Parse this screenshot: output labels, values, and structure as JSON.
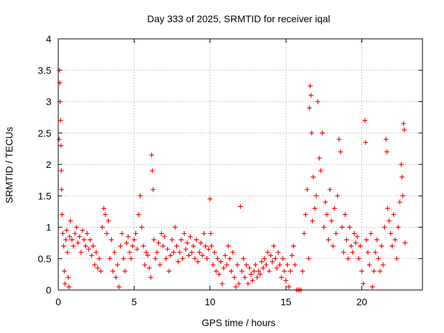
{
  "chart_data": {
    "type": "scatter",
    "title": "Day 333 of 2025, SRMTID for receiver iqal",
    "xlabel": "GPS time / hours",
    "ylabel": "SRMTID / TECUs",
    "xlim": [
      0,
      24
    ],
    "ylim": [
      0,
      4
    ],
    "xticks": [
      0,
      5,
      10,
      15,
      20
    ],
    "xtick_labels": [
      "0",
      "5",
      "10",
      "15",
      "20"
    ],
    "yticks": [
      0,
      0.5,
      1,
      1.5,
      2,
      2.5,
      3,
      3.5,
      4
    ],
    "ytick_labels": [
      "0",
      "0.5",
      "1",
      "1.5",
      "2",
      "2.5",
      "3",
      "3.5",
      "4"
    ],
    "grid": true,
    "marker": "+",
    "series": [
      {
        "name": "SRMTID",
        "color": "#ff0000",
        "points": [
          [
            0.05,
            2.4
          ],
          [
            0.08,
            3.5
          ],
          [
            0.1,
            3.3
          ],
          [
            0.12,
            3.0
          ],
          [
            0.15,
            2.7
          ],
          [
            0.18,
            2.3
          ],
          [
            0.2,
            1.9
          ],
          [
            0.22,
            1.6
          ],
          [
            0.25,
            1.2
          ],
          [
            0.3,
            0.9
          ],
          [
            0.35,
            0.7
          ],
          [
            0.4,
            0.3
          ],
          [
            0.45,
            0.1
          ],
          [
            0.5,
            0.8
          ],
          [
            0.55,
            0.95
          ],
          [
            0.6,
            0.6
          ],
          [
            0.65,
            0.2
          ],
          [
            0.7,
            0.05
          ],
          [
            0.75,
            0.85
          ],
          [
            0.8,
            1.1
          ],
          [
            0.9,
            0.8
          ],
          [
            1.0,
            0.7
          ],
          [
            1.1,
            0.9
          ],
          [
            1.2,
            1.0
          ],
          [
            1.3,
            0.75
          ],
          [
            1.4,
            0.85
          ],
          [
            1.5,
            0.6
          ],
          [
            1.6,
            0.95
          ],
          [
            1.7,
            0.8
          ],
          [
            1.8,
            0.7
          ],
          [
            1.9,
            0.9
          ],
          [
            2.0,
            0.65
          ],
          [
            2.1,
            0.8
          ],
          [
            2.2,
            0.55
          ],
          [
            2.3,
            0.7
          ],
          [
            2.4,
            0.4
          ],
          [
            2.5,
            0.6
          ],
          [
            2.6,
            0.35
          ],
          [
            2.7,
            0.5
          ],
          [
            2.8,
            0.3
          ],
          [
            2.9,
            1.0
          ],
          [
            3.0,
            1.3
          ],
          [
            3.1,
            1.2
          ],
          [
            3.2,
            0.9
          ],
          [
            3.3,
            1.1
          ],
          [
            3.4,
            0.5
          ],
          [
            3.5,
            0.8
          ],
          [
            3.6,
            0.3
          ],
          [
            3.7,
            0.6
          ],
          [
            3.8,
            0.2
          ],
          [
            3.9,
            0.4
          ],
          [
            4.0,
            0.05
          ],
          [
            4.1,
            0.7
          ],
          [
            4.2,
            0.9
          ],
          [
            4.3,
            0.5
          ],
          [
            4.4,
            0.3
          ],
          [
            4.5,
            0.75
          ],
          [
            4.6,
            0.85
          ],
          [
            4.7,
            0.6
          ],
          [
            4.8,
            0.5
          ],
          [
            4.9,
            0.7
          ],
          [
            5.0,
            0.8
          ],
          [
            5.1,
            0.9
          ],
          [
            5.2,
            0.65
          ],
          [
            5.3,
            1.2
          ],
          [
            5.4,
            1.5
          ],
          [
            5.5,
            1.0
          ],
          [
            5.6,
            0.7
          ],
          [
            5.7,
            0.4
          ],
          [
            5.8,
            0.6
          ],
          [
            5.9,
            0.55
          ],
          [
            6.0,
            0.35
          ],
          [
            6.1,
            0.2
          ],
          [
            6.15,
            2.15
          ],
          [
            6.2,
            1.9
          ],
          [
            6.25,
            1.6
          ],
          [
            6.3,
            0.8
          ],
          [
            6.4,
            0.5
          ],
          [
            6.5,
            0.6
          ],
          [
            6.6,
            0.75
          ],
          [
            6.7,
            0.4
          ],
          [
            6.8,
            0.9
          ],
          [
            6.9,
            0.7
          ],
          [
            7.0,
            0.85
          ],
          [
            7.1,
            0.5
          ],
          [
            7.2,
            0.65
          ],
          [
            7.3,
            0.3
          ],
          [
            7.4,
            0.55
          ],
          [
            7.5,
            0.8
          ],
          [
            7.6,
            0.6
          ],
          [
            7.7,
            1.0
          ],
          [
            7.8,
            0.7
          ],
          [
            7.9,
            0.45
          ],
          [
            8.0,
            0.6
          ],
          [
            8.1,
            0.8
          ],
          [
            8.2,
            0.5
          ],
          [
            8.3,
            0.9
          ],
          [
            8.4,
            0.65
          ],
          [
            8.5,
            0.75
          ],
          [
            8.6,
            0.55
          ],
          [
            8.7,
            0.85
          ],
          [
            8.8,
            0.6
          ],
          [
            8.9,
            0.7
          ],
          [
            9.0,
            0.5
          ],
          [
            9.1,
            0.8
          ],
          [
            9.2,
            0.45
          ],
          [
            9.3,
            0.6
          ],
          [
            9.4,
            0.75
          ],
          [
            9.5,
            0.55
          ],
          [
            9.6,
            0.9
          ],
          [
            9.7,
            0.7
          ],
          [
            9.8,
            0.5
          ],
          [
            9.9,
            0.65
          ],
          [
            10.0,
            1.45
          ],
          [
            10.05,
            0.9
          ],
          [
            10.1,
            0.7
          ],
          [
            10.2,
            0.4
          ],
          [
            10.3,
            0.6
          ],
          [
            10.4,
            0.3
          ],
          [
            10.5,
            0.5
          ],
          [
            10.6,
            0.25
          ],
          [
            10.7,
            0.45
          ],
          [
            10.8,
            0.1
          ],
          [
            10.9,
            0.35
          ],
          [
            11.0,
            0.55
          ],
          [
            11.1,
            0.4
          ],
          [
            11.2,
            0.7
          ],
          [
            11.3,
            0.5
          ],
          [
            11.4,
            0.3
          ],
          [
            11.5,
            0.6
          ],
          [
            11.6,
            0.2
          ],
          [
            11.7,
            0.05
          ],
          [
            11.8,
            0.4
          ],
          [
            11.9,
            0.1
          ],
          [
            12.0,
            1.33
          ],
          [
            12.1,
            0.3
          ],
          [
            12.2,
            0.5
          ],
          [
            12.3,
            0.2
          ],
          [
            12.4,
            0.4
          ],
          [
            12.5,
            0.1
          ],
          [
            12.6,
            0.35
          ],
          [
            12.7,
            0.25
          ],
          [
            12.8,
            0.15
          ],
          [
            12.9,
            0.3
          ],
          [
            13.0,
            0.4
          ],
          [
            13.1,
            0.2
          ],
          [
            13.2,
            0.3
          ],
          [
            13.3,
            0.25
          ],
          [
            13.4,
            0.45
          ],
          [
            13.5,
            0.35
          ],
          [
            13.6,
            0.5
          ],
          [
            13.7,
            0.4
          ],
          [
            13.8,
            0.6
          ],
          [
            13.9,
            0.3
          ],
          [
            14.0,
            0.55
          ],
          [
            14.1,
            0.45
          ],
          [
            14.2,
            0.7
          ],
          [
            14.3,
            0.5
          ],
          [
            14.4,
            0.35
          ],
          [
            14.5,
            0.6
          ],
          [
            14.6,
            0.4
          ],
          [
            14.7,
            0.2
          ],
          [
            14.8,
            0.5
          ],
          [
            14.9,
            0.3
          ],
          [
            15.0,
            0.15
          ],
          [
            15.1,
            0.4
          ],
          [
            15.2,
            0.05
          ],
          [
            15.3,
            0.3
          ],
          [
            15.4,
            0.55
          ],
          [
            15.5,
            0.7
          ],
          [
            15.6,
            0.4
          ],
          [
            15.7,
            0.0
          ],
          [
            15.8,
            0.0
          ],
          [
            15.9,
            0.0
          ],
          [
            16.0,
            0.0
          ],
          [
            16.1,
            0.3
          ],
          [
            16.2,
            0.9
          ],
          [
            16.3,
            1.2
          ],
          [
            16.4,
            1.6
          ],
          [
            16.5,
            0.5
          ],
          [
            16.55,
            2.9
          ],
          [
            16.6,
            3.25
          ],
          [
            16.65,
            3.1
          ],
          [
            16.7,
            2.5
          ],
          [
            16.75,
            1.1
          ],
          [
            16.8,
            1.8
          ],
          [
            16.9,
            1.3
          ],
          [
            17.0,
            1.5
          ],
          [
            17.1,
            3.0
          ],
          [
            17.2,
            2.1
          ],
          [
            17.3,
            1.9
          ],
          [
            17.4,
            2.5
          ],
          [
            17.5,
            1.0
          ],
          [
            17.6,
            1.4
          ],
          [
            17.7,
            1.2
          ],
          [
            17.8,
            0.8
          ],
          [
            17.9,
            1.6
          ],
          [
            18.0,
            1.1
          ],
          [
            18.1,
            0.7
          ],
          [
            18.2,
            1.3
          ],
          [
            18.3,
            0.9
          ],
          [
            18.4,
            1.5
          ],
          [
            18.5,
            2.4
          ],
          [
            18.6,
            2.2
          ],
          [
            18.7,
            1.0
          ],
          [
            18.8,
            0.6
          ],
          [
            18.9,
            1.2
          ],
          [
            19.0,
            0.8
          ],
          [
            19.1,
            0.5
          ],
          [
            19.2,
            1.0
          ],
          [
            19.3,
            0.7
          ],
          [
            19.4,
            0.6
          ],
          [
            19.5,
            0.9
          ],
          [
            19.6,
            0.75
          ],
          [
            19.7,
            0.85
          ],
          [
            19.8,
            0.5
          ],
          [
            19.9,
            0.7
          ],
          [
            20.0,
            0.3
          ],
          [
            20.1,
            0.1
          ],
          [
            20.2,
            2.7
          ],
          [
            20.25,
            2.35
          ],
          [
            20.3,
            0.8
          ],
          [
            20.4,
            0.6
          ],
          [
            20.5,
            0.4
          ],
          [
            20.6,
            0.9
          ],
          [
            20.7,
            0.05
          ],
          [
            20.8,
            0.3
          ],
          [
            20.9,
            0.6
          ],
          [
            21.0,
            0.8
          ],
          [
            21.1,
            0.5
          ],
          [
            21.2,
            0.3
          ],
          [
            21.3,
            0.7
          ],
          [
            21.4,
            0.4
          ],
          [
            21.5,
            1.0
          ],
          [
            21.6,
            2.4
          ],
          [
            21.65,
            2.2
          ],
          [
            21.7,
            1.3
          ],
          [
            21.8,
            1.1
          ],
          [
            21.9,
            0.9
          ],
          [
            22.0,
            0.7
          ],
          [
            22.1,
            1.2
          ],
          [
            22.2,
            0.8
          ],
          [
            22.3,
            0.5
          ],
          [
            22.4,
            1.0
          ],
          [
            22.5,
            1.4
          ],
          [
            22.6,
            2.0
          ],
          [
            22.65,
            1.8
          ],
          [
            22.7,
            1.5
          ],
          [
            22.75,
            2.65
          ],
          [
            22.8,
            2.55
          ],
          [
            22.85,
            0.75
          ]
        ]
      }
    ]
  }
}
